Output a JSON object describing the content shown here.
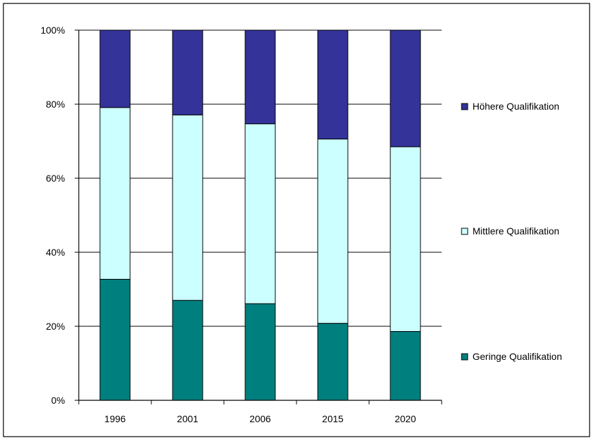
{
  "chart_data": {
    "type": "bar",
    "stacked": true,
    "percent": true,
    "categories": [
      "1996",
      "2001",
      "2006",
      "2015",
      "2020"
    ],
    "series": [
      {
        "name": "Geringe Qualifikation",
        "color": "#007f7f",
        "values": [
          32.7,
          27.0,
          26.1,
          20.8,
          18.6
        ]
      },
      {
        "name": "Mittlere Qualifikation",
        "color": "#ccffff",
        "values": [
          46.4,
          50.1,
          48.6,
          49.8,
          49.9
        ]
      },
      {
        "name": "Höhere Qualifikation",
        "color": "#333399",
        "values": [
          20.9,
          22.9,
          25.3,
          29.4,
          31.5
        ]
      }
    ],
    "ylim": [
      0,
      100
    ],
    "yticks": [
      "0%",
      "20%",
      "40%",
      "60%",
      "80%",
      "100%"
    ],
    "grid": true,
    "legend_position": "right"
  }
}
